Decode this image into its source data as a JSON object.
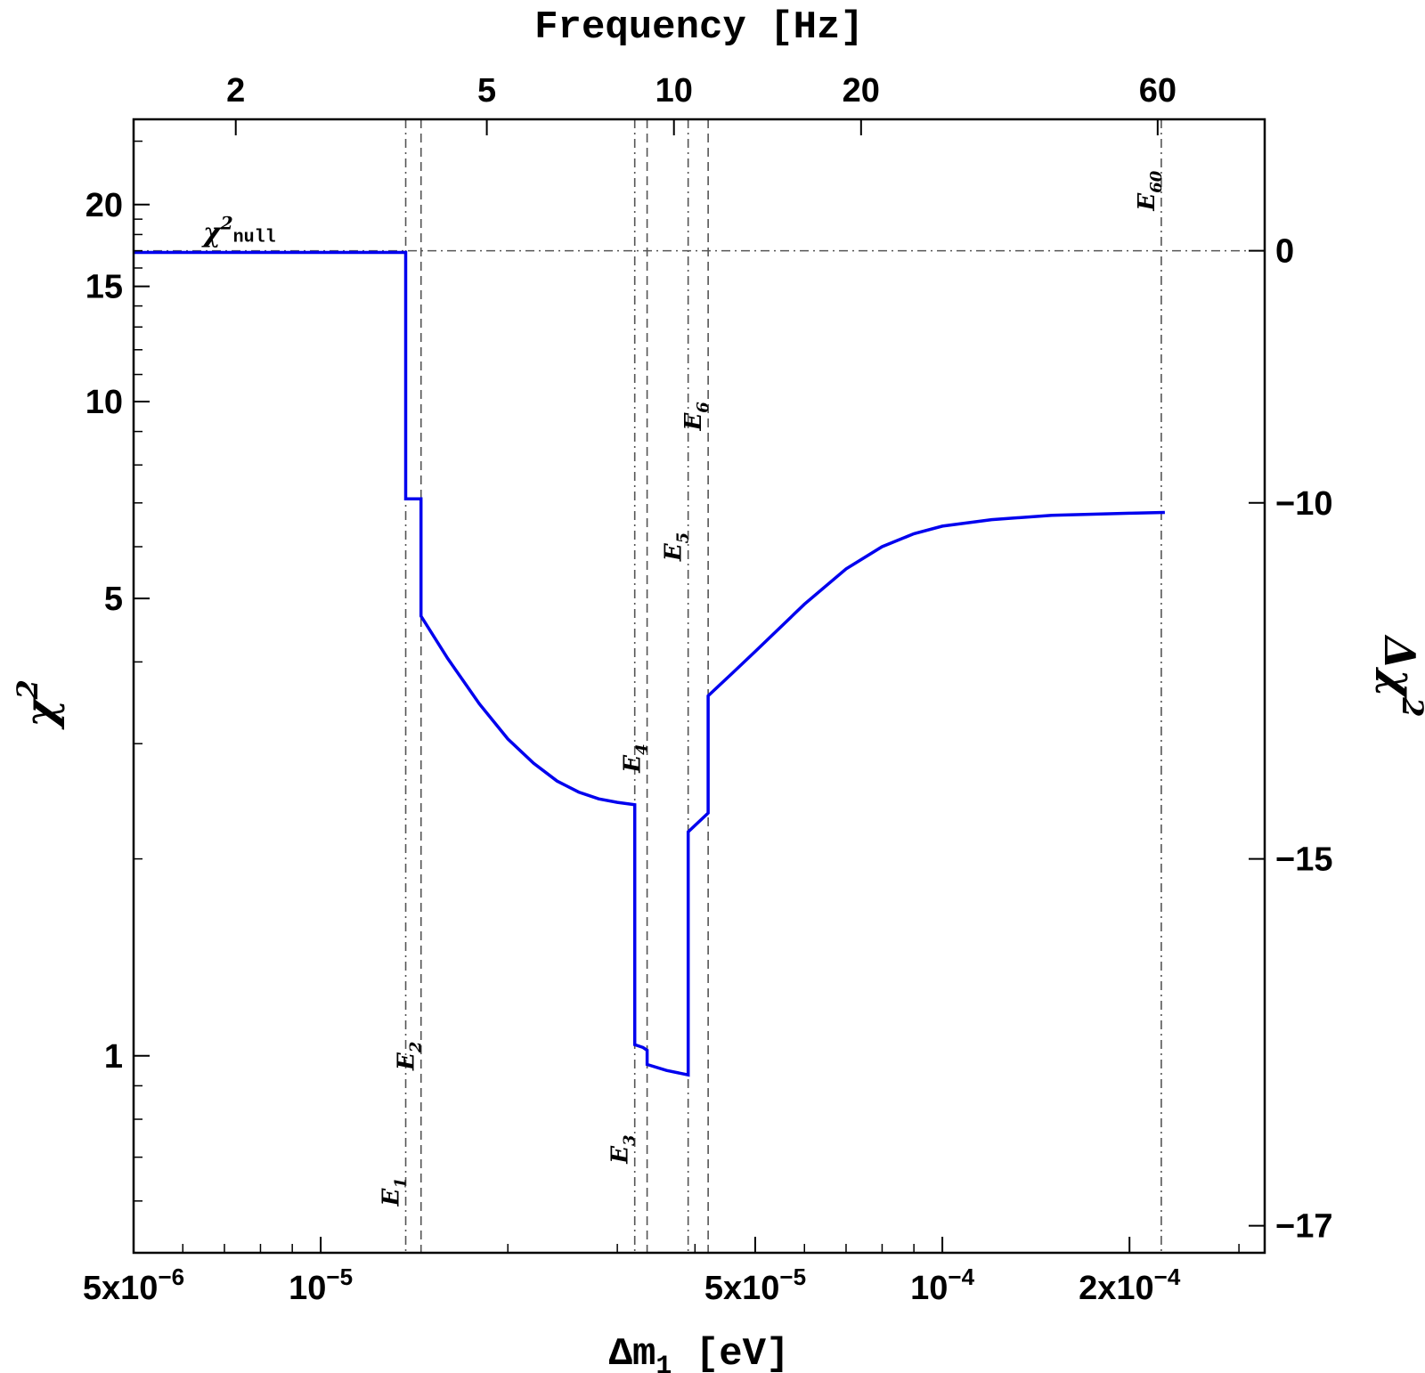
{
  "chart_data": {
    "type": "line",
    "x_axis": {
      "label_main": "Δm",
      "label_sub": "1",
      "label_unit": " [eV]",
      "scale": "log",
      "range": [
        5e-06,
        0.00033
      ],
      "tick_labels": [
        {
          "value": 5e-06,
          "base": "5x10",
          "exp": "−6"
        },
        {
          "value": 1e-05,
          "base": "10",
          "exp": "−5"
        },
        {
          "value": 5e-05,
          "base": "5x10",
          "exp": "−5"
        },
        {
          "value": 0.0001,
          "base": "10",
          "exp": "−4"
        },
        {
          "value": 0.0002,
          "base": "2x10",
          "exp": "−4"
        }
      ]
    },
    "top_axis": {
      "label": "Frequency [Hz]",
      "ticks": [
        {
          "label": "2",
          "x": 7.3e-06
        },
        {
          "label": "5",
          "x": 1.85e-05
        },
        {
          "label": "10",
          "x": 3.7e-05
        },
        {
          "label": "20",
          "x": 7.4e-05
        },
        {
          "label": "60",
          "x": 0.000222
        }
      ]
    },
    "y_axis": {
      "label": "χ",
      "label_sup": "2",
      "scale": "log",
      "range": [
        0.5,
        27
      ],
      "ticks": [
        {
          "value": 1,
          "label": "1"
        },
        {
          "value": 5,
          "label": "5"
        },
        {
          "value": 10,
          "label": "10"
        },
        {
          "value": 15,
          "label": "15"
        },
        {
          "value": 20,
          "label": "20"
        }
      ]
    },
    "y2_axis": {
      "label": "Δχ",
      "label_sup": "2",
      "ticks": [
        {
          "chi2": 17.0,
          "label": "0"
        },
        {
          "chi2": 7.0,
          "label": "−10"
        },
        {
          "chi2": 2.0,
          "label": "−15"
        },
        {
          "chi2": 0.55,
          "label": "−17"
        }
      ]
    },
    "null_line": {
      "chi2": 17.0,
      "label": "χ",
      "label_sup": "2",
      "label_sub": "null"
    },
    "event_lines": [
      {
        "name": "E",
        "sub": "1",
        "x": 1.37e-05,
        "label_chi2": 0.62
      },
      {
        "name": "E",
        "sub": "2",
        "x": 1.45e-05,
        "label_chi2": 1.0
      },
      {
        "name": "E",
        "sub": "3",
        "x": 3.2e-05,
        "label_chi2": 0.72
      },
      {
        "name": "E",
        "sub": "4",
        "x": 3.35e-05,
        "label_chi2": 2.85
      },
      {
        "name": "E",
        "sub": "5",
        "x": 3.9e-05,
        "label_chi2": 6.0
      },
      {
        "name": "E",
        "sub": "6",
        "x": 4.2e-05,
        "label_chi2": 9.5
      },
      {
        "name": "E",
        "sub": "60",
        "x": 0.000225,
        "label_chi2": 21.0
      }
    ],
    "series": [
      {
        "color": "#0000ee",
        "points": [
          [
            5e-06,
            16.9
          ],
          [
            1.37e-05,
            16.9
          ],
          [
            1.37e-05,
            7.1
          ],
          [
            1.45e-05,
            7.1
          ],
          [
            1.45e-05,
            4.7
          ],
          [
            1.6e-05,
            4.05
          ],
          [
            1.8e-05,
            3.45
          ],
          [
            2e-05,
            3.05
          ],
          [
            2.2e-05,
            2.8
          ],
          [
            2.4e-05,
            2.63
          ],
          [
            2.6e-05,
            2.53
          ],
          [
            2.8e-05,
            2.47
          ],
          [
            3e-05,
            2.44
          ],
          [
            3.2e-05,
            2.42
          ],
          [
            3.2e-05,
            1.04
          ],
          [
            3.3e-05,
            1.03
          ],
          [
            3.35e-05,
            1.02
          ],
          [
            3.35e-05,
            0.97
          ],
          [
            3.6e-05,
            0.95
          ],
          [
            3.9e-05,
            0.935
          ],
          [
            3.9e-05,
            2.2
          ],
          [
            4.2e-05,
            2.35
          ],
          [
            4.2e-05,
            3.55
          ],
          [
            4.6e-05,
            3.85
          ],
          [
            5e-05,
            4.15
          ],
          [
            6e-05,
            4.9
          ],
          [
            7e-05,
            5.55
          ],
          [
            8e-05,
            6.0
          ],
          [
            9e-05,
            6.28
          ],
          [
            0.0001,
            6.45
          ],
          [
            0.00012,
            6.6
          ],
          [
            0.00015,
            6.7
          ],
          [
            0.0002,
            6.75
          ],
          [
            0.000228,
            6.77
          ]
        ]
      }
    ]
  }
}
